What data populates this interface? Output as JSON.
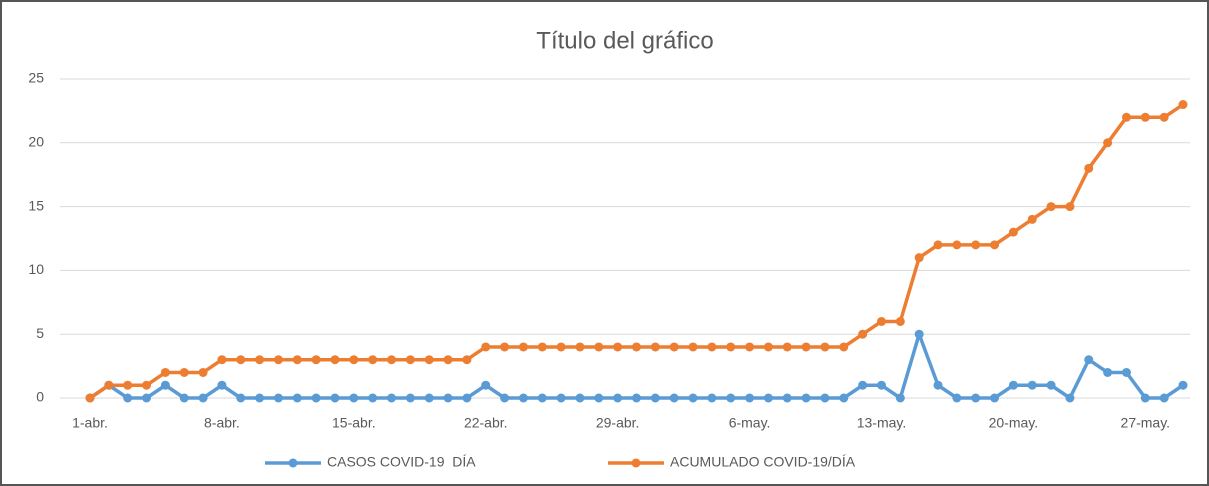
{
  "chart_data": {
    "type": "line",
    "title": "Título del gráfico",
    "categories": [
      "1-abr.",
      null,
      null,
      null,
      null,
      null,
      null,
      "8-abr.",
      null,
      null,
      null,
      null,
      null,
      null,
      "15-abr.",
      null,
      null,
      null,
      null,
      null,
      null,
      "22-abr.",
      null,
      null,
      null,
      null,
      null,
      null,
      "29-abr.",
      null,
      null,
      null,
      null,
      null,
      null,
      "6-may.",
      null,
      null,
      null,
      null,
      null,
      null,
      "13-may.",
      null,
      null,
      null,
      null,
      null,
      null,
      "20-may.",
      null,
      null,
      null,
      null,
      null,
      null,
      "27-may.",
      null,
      null
    ],
    "series": [
      {
        "name": "CASOS COVID-19  DÍA",
        "color": "#5b9bd5",
        "values": [
          0,
          1,
          0,
          0,
          1,
          0,
          0,
          1,
          0,
          0,
          0,
          0,
          0,
          0,
          0,
          0,
          0,
          0,
          0,
          0,
          0,
          1,
          0,
          0,
          0,
          0,
          0,
          0,
          0,
          0,
          0,
          0,
          0,
          0,
          0,
          0,
          0,
          0,
          0,
          0,
          0,
          1,
          1,
          0,
          5,
          1,
          0,
          0,
          0,
          1,
          1,
          1,
          0,
          3,
          2,
          2,
          0,
          0,
          1
        ]
      },
      {
        "name": "ACUMULADO COVID-19/DÍA",
        "color": "#ed7d31",
        "values": [
          0,
          1,
          1,
          1,
          2,
          2,
          2,
          3,
          3,
          3,
          3,
          3,
          3,
          3,
          3,
          3,
          3,
          3,
          3,
          3,
          3,
          4,
          4,
          4,
          4,
          4,
          4,
          4,
          4,
          4,
          4,
          4,
          4,
          4,
          4,
          4,
          4,
          4,
          4,
          4,
          4,
          5,
          6,
          6,
          11,
          12,
          12,
          12,
          12,
          13,
          14,
          15,
          15,
          18,
          20,
          22,
          22,
          22,
          23
        ]
      }
    ],
    "ylim": [
      0,
      25
    ],
    "yticks": [
      0,
      5,
      10,
      15,
      20,
      25
    ],
    "grid": true,
    "legend": "bottom"
  }
}
